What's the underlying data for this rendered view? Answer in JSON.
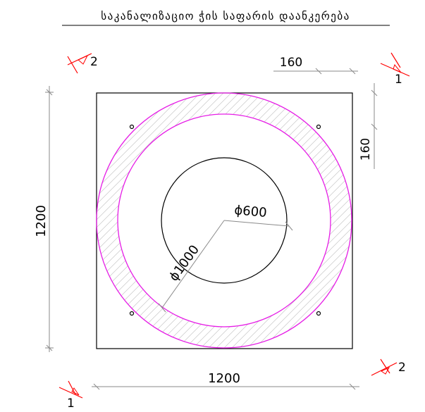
{
  "title": "საკანალიზაციო ჭის საფარის დაანკერება",
  "dimensions": {
    "overall_width": "1200",
    "overall_height": "1200",
    "bolt_offset_x": "160",
    "bolt_offset_y": "160",
    "outer_diameter": "ϕ1000",
    "inner_diameter": "ϕ600"
  },
  "section_marks": {
    "top_left": "2",
    "top_right": "1",
    "bottom_left": "1",
    "bottom_right": "2"
  },
  "colors": {
    "outline": "#000000",
    "ring": "#e61ee6",
    "dimension": "#8a8a8a",
    "section_mark": "#ff0000",
    "hatch": "#c8c8c8"
  }
}
